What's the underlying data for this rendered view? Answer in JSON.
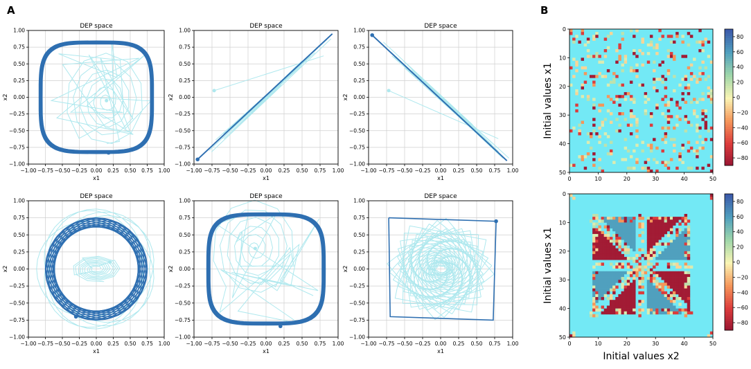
{
  "panels": {
    "a_label": "A",
    "b_label": "B"
  },
  "colors": {
    "traj_light": "#aee8ee",
    "traj_dark": "#2e6fb1",
    "grid": "#cfcfcf",
    "axis": "#000000",
    "heatmap_background": "#73e9f5"
  },
  "chart_data": [
    {
      "type": "line",
      "id": "dep1",
      "title": "DEP space",
      "xlabel": "x1",
      "ylabel": "x2",
      "xlim": [
        -1.0,
        1.0
      ],
      "ylim": [
        -1.0,
        1.0
      ],
      "xticks": [
        "−1.00",
        "−0.75",
        "−0.50",
        "−0.25",
        "0.00",
        "0.25",
        "0.50",
        "0.75",
        "1.00"
      ],
      "yticks": [
        "1.00",
        "0.75",
        "0.50",
        "0.25",
        "0.00",
        "−0.25",
        "−0.50",
        "−0.75",
        "−1.00"
      ],
      "pattern": "rounded_square",
      "radius": 0.82,
      "start": [
        0.15,
        -0.05
      ],
      "end": [
        0.18,
        -0.83
      ]
    },
    {
      "type": "line",
      "id": "dep2",
      "title": "DEP space",
      "xlabel": "x1",
      "ylabel": "x2",
      "xlim": [
        -1.0,
        1.0
      ],
      "ylim": [
        -1.0,
        1.0
      ],
      "xticks": [
        "−1.00",
        "−0.75",
        "−0.50",
        "−0.25",
        "0.00",
        "0.25",
        "0.50",
        "0.75",
        "1.00"
      ],
      "yticks": [
        "1.00",
        "0.75",
        "0.50",
        "0.25",
        "0.00",
        "−0.25",
        "−0.50",
        "−0.75",
        "−1.00"
      ],
      "pattern": "diagonal_up",
      "start": [
        -0.72,
        0.1
      ],
      "end": [
        -0.95,
        -0.93
      ]
    },
    {
      "type": "line",
      "id": "dep3",
      "title": "DEP space",
      "xlabel": "x1",
      "ylabel": "x2",
      "xlim": [
        -1.0,
        1.0
      ],
      "ylim": [
        -1.0,
        1.0
      ],
      "xticks": [
        "−1.00",
        "−0.75",
        "−0.50",
        "−0.25",
        "0.00",
        "0.25",
        "0.50",
        "0.75",
        "1.00"
      ],
      "yticks": [
        "1.00",
        "0.75",
        "0.50",
        "0.25",
        "0.00",
        "−0.25",
        "−0.50",
        "−0.75",
        "−1.00"
      ],
      "pattern": "diagonal_down",
      "start": [
        -0.72,
        0.1
      ],
      "end": [
        -0.95,
        0.93
      ]
    },
    {
      "type": "line",
      "id": "dep4",
      "title": "DEP space",
      "xlabel": "x1",
      "ylabel": "x2",
      "xlim": [
        -1.0,
        1.0
      ],
      "ylim": [
        -1.0,
        1.0
      ],
      "xticks": [
        "−1.00",
        "−0.75",
        "−0.50",
        "−0.25",
        "0.00",
        "0.25",
        "0.50",
        "0.75",
        "1.00"
      ],
      "yticks": [
        "1.00",
        "0.75",
        "0.50",
        "0.25",
        "0.00",
        "−0.25",
        "−0.50",
        "−0.75",
        "−1.00"
      ],
      "pattern": "precessing_ellipse",
      "radius": 0.75,
      "start": [
        0.2,
        0.1
      ],
      "end": [
        -0.3,
        -0.7
      ]
    },
    {
      "type": "line",
      "id": "dep5",
      "title": "DEP space",
      "xlabel": "x1",
      "ylabel": "x2",
      "xlim": [
        -1.0,
        1.0
      ],
      "ylim": [
        -1.0,
        1.0
      ],
      "xticks": [
        "−1.00",
        "−0.75",
        "−0.50",
        "−0.25",
        "0.00",
        "0.25",
        "0.50",
        "0.75",
        "1.00"
      ],
      "yticks": [
        "1.00",
        "0.75",
        "0.50",
        "0.25",
        "0.00",
        "−0.25",
        "−0.50",
        "−0.75",
        "−1.00"
      ],
      "pattern": "rounded_square",
      "radius": 0.8,
      "start": [
        -0.15,
        0.3
      ],
      "end": [
        0.2,
        -0.84
      ]
    },
    {
      "type": "line",
      "id": "dep6",
      "title": "DEP space",
      "xlabel": "x1",
      "ylabel": "x2",
      "xlim": [
        -1.0,
        1.0
      ],
      "ylim": [
        -1.0,
        1.0
      ],
      "xticks": [
        "−1.00",
        "−0.75",
        "−0.50",
        "−0.25",
        "0.00",
        "0.25",
        "0.50",
        "0.75",
        "1.00"
      ],
      "yticks": [
        "1.00",
        "0.75",
        "0.50",
        "0.25",
        "0.00",
        "−0.25",
        "−0.50",
        "−0.75",
        "−1.00"
      ],
      "pattern": "square",
      "corners": [
        [
          -0.72,
          0.75
        ],
        [
          0.77,
          0.7
        ],
        [
          0.73,
          -0.75
        ],
        [
          -0.7,
          -0.7
        ]
      ],
      "start": [
        0.77,
        0.7
      ],
      "end": [
        0.77,
        0.7
      ]
    },
    {
      "type": "heatmap",
      "id": "hm1",
      "ylabel": "Initial values x1",
      "xlabel": "",
      "xticks": [
        "0",
        "10",
        "20",
        "30",
        "40",
        "50"
      ],
      "yticks": [
        "0",
        "10",
        "20",
        "30",
        "40",
        "50"
      ],
      "grid_size": 50,
      "pattern": "scattered",
      "colorbar": {
        "ticks": [
          "80",
          "60",
          "40",
          "20",
          "0",
          "−20",
          "−40",
          "−60",
          "−80"
        ],
        "vmin": -90,
        "vmax": 90
      }
    },
    {
      "type": "heatmap",
      "id": "hm2",
      "ylabel": "Initial values x1",
      "xlabel": "Initial values x2",
      "xticks": [
        "0",
        "10",
        "20",
        "30",
        "40",
        "50"
      ],
      "yticks": [
        "0",
        "10",
        "20",
        "30",
        "40",
        "50"
      ],
      "grid_size": 50,
      "pattern": "pinwheel",
      "colorbar": {
        "ticks": [
          "80",
          "60",
          "40",
          "20",
          "0",
          "−20",
          "−40",
          "−60",
          "−80"
        ],
        "vmin": -90,
        "vmax": 90
      }
    }
  ]
}
